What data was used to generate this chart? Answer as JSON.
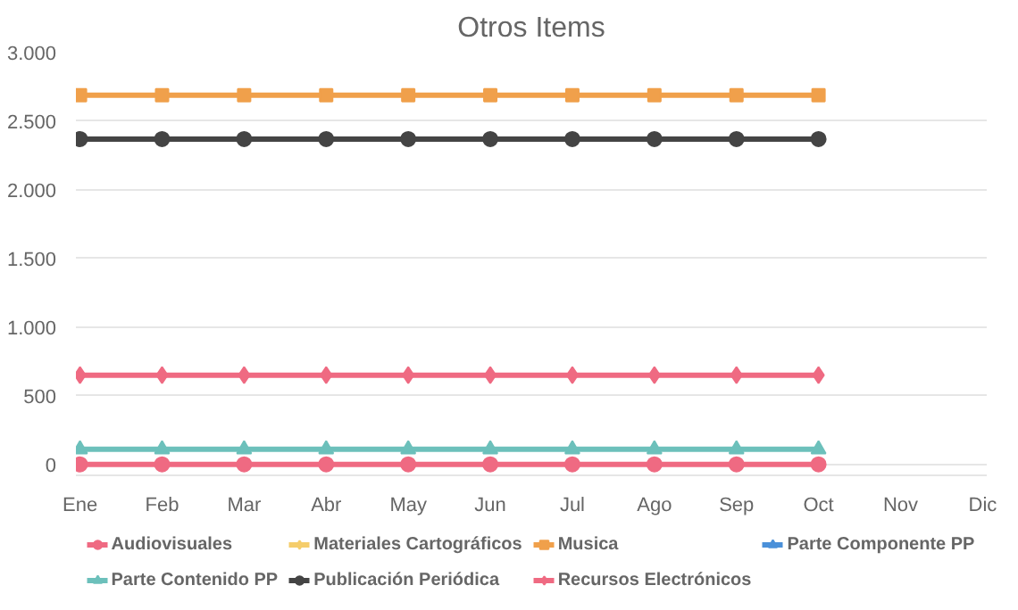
{
  "chart_data": {
    "type": "line",
    "title": "Otros Items",
    "categories": [
      "Ene",
      "Feb",
      "Mar",
      "Abr",
      "May",
      "Jun",
      "Jul",
      "Ago",
      "Sep",
      "Oct",
      "Nov",
      "Dic"
    ],
    "series": [
      {
        "name": "Audiovisuales",
        "color": "#ef6a82",
        "marker": "circle",
        "values": [
          0,
          0,
          0,
          0,
          0,
          0,
          0,
          0,
          0,
          0,
          null,
          null
        ]
      },
      {
        "name": "Materiales Cartográficos",
        "color": "#f5cd6b",
        "marker": "diamond",
        "values": [
          null,
          null,
          null,
          null,
          null,
          null,
          null,
          null,
          null,
          null,
          null,
          null
        ]
      },
      {
        "name": "Musica",
        "color": "#f0a04b",
        "marker": "square",
        "values": [
          2690,
          2690,
          2690,
          2690,
          2690,
          2690,
          2690,
          2690,
          2690,
          2690,
          null,
          null
        ]
      },
      {
        "name": "Parte Componente PP",
        "color": "#4a90d9",
        "marker": "triangle",
        "values": [
          null,
          null,
          null,
          null,
          null,
          null,
          null,
          null,
          null,
          null,
          null,
          null
        ]
      },
      {
        "name": "Parte Contenido PP",
        "color": "#6cc0bb",
        "marker": "triangle",
        "values": [
          110,
          110,
          110,
          110,
          110,
          110,
          110,
          110,
          110,
          110,
          null,
          null
        ]
      },
      {
        "name": "Publicación Periódica",
        "color": "#444444",
        "marker": "circle",
        "values": [
          2370,
          2370,
          2370,
          2370,
          2370,
          2370,
          2370,
          2370,
          2370,
          2370,
          null,
          null
        ]
      },
      {
        "name": "Recursos Electrónicos",
        "color": "#ef6a82",
        "marker": "diamond",
        "values": [
          650,
          650,
          650,
          650,
          650,
          650,
          650,
          650,
          650,
          650,
          null,
          null
        ]
      }
    ],
    "ylim": [
      -80,
      3000
    ],
    "yticks": [
      {
        "value": 0,
        "label": "0"
      },
      {
        "value": 500,
        "label": "500"
      },
      {
        "value": 1000,
        "label": "1.000"
      },
      {
        "value": 1500,
        "label": "1.500"
      },
      {
        "value": 2000,
        "label": "2.000"
      },
      {
        "value": 2500,
        "label": "2.500"
      },
      {
        "value": 3000,
        "label": "3.000"
      }
    ],
    "grid": "y",
    "legend": "bottom",
    "line_style": "solid"
  }
}
